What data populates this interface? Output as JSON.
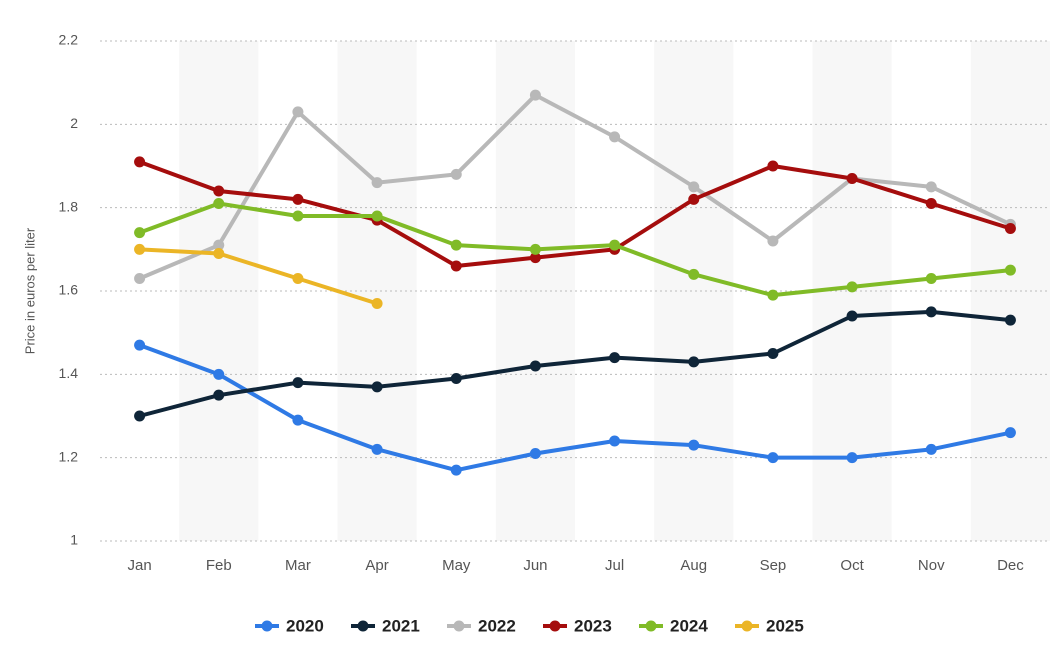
{
  "chart_data": {
    "type": "line",
    "y_label": "Price in euros per liter",
    "categories": [
      "Jan",
      "Feb",
      "Mar",
      "Apr",
      "May",
      "Jun",
      "Jul",
      "Aug",
      "Sep",
      "Oct",
      "Nov",
      "Dec"
    ],
    "series": [
      {
        "name": "2020",
        "color": "#2f7ae5",
        "values": [
          1.47,
          1.4,
          1.29,
          1.22,
          1.17,
          1.21,
          1.24,
          1.23,
          1.2,
          1.2,
          1.22,
          1.26
        ]
      },
      {
        "name": "2021",
        "color": "#0f2538",
        "values": [
          1.3,
          1.35,
          1.38,
          1.37,
          1.39,
          1.42,
          1.44,
          1.43,
          1.45,
          1.54,
          1.55,
          1.53
        ]
      },
      {
        "name": "2022",
        "color": "#b8b8b8",
        "values": [
          1.63,
          1.71,
          2.03,
          1.86,
          1.88,
          2.07,
          1.97,
          1.85,
          1.72,
          1.87,
          1.85,
          1.76
        ]
      },
      {
        "name": "2023",
        "color": "#a50d0d",
        "values": [
          1.91,
          1.84,
          1.82,
          1.77,
          1.66,
          1.68,
          1.7,
          1.82,
          1.9,
          1.87,
          1.81,
          1.75
        ]
      },
      {
        "name": "2024",
        "color": "#80bb27",
        "values": [
          1.74,
          1.81,
          1.78,
          1.78,
          1.71,
          1.7,
          1.71,
          1.64,
          1.59,
          1.61,
          1.63,
          1.65
        ]
      },
      {
        "name": "2025",
        "color": "#ebb526",
        "values": [
          1.7,
          1.69,
          1.63,
          1.57,
          null,
          null,
          null,
          null,
          null,
          null,
          null,
          null
        ]
      }
    ],
    "ylim": [
      1,
      2.2
    ],
    "yticks": [
      1,
      1.2,
      1.4,
      1.6,
      1.8,
      2,
      2.2
    ],
    "grid": true,
    "legend": "bottom"
  }
}
